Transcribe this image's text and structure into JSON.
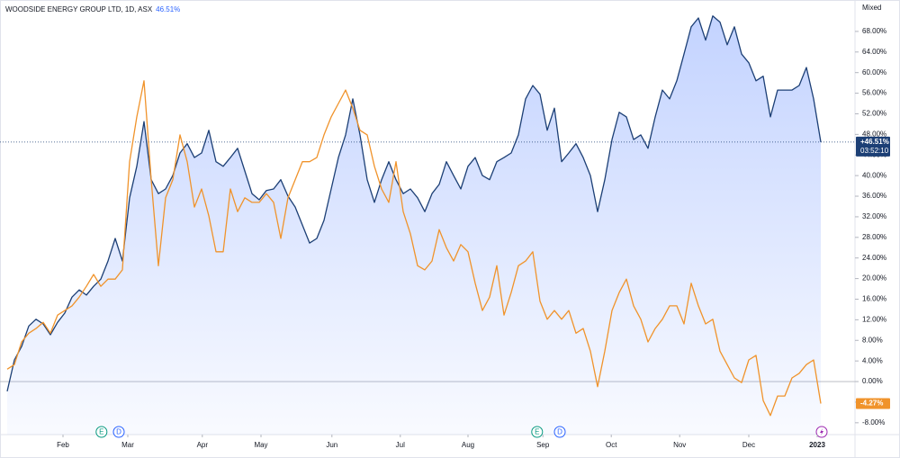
{
  "chart_data": {
    "type": "line",
    "title": "WOODSIDE ENERGY GROUP LTD, 1D, ASX",
    "title_value": "46.51%",
    "scale_mode": "Mixed",
    "countdown": "03:52:10",
    "xlim": [
      -1,
      117.75
    ],
    "ylim": [
      -10.3,
      74.1
    ],
    "xticks": [
      {
        "value": 7.75,
        "label": "Feb"
      },
      {
        "value": 16.75,
        "label": "Mar"
      },
      {
        "value": 27.1,
        "label": "Apr"
      },
      {
        "value": 35.25,
        "label": "May"
      },
      {
        "value": 45.1,
        "label": "Jun"
      },
      {
        "value": 54.6,
        "label": "Jul"
      },
      {
        "value": 64,
        "label": "Aug"
      },
      {
        "value": 74.4,
        "label": "Sep"
      },
      {
        "value": 83.9,
        "label": "Oct"
      },
      {
        "value": 93.4,
        "label": "Nov"
      },
      {
        "value": 103,
        "label": "Dec"
      },
      {
        "value": 112.5,
        "label": "2023"
      }
    ],
    "yticks": [
      {
        "value": -8,
        "label": "-8.00%"
      },
      {
        "value": -4,
        "label": "-4.00%"
      },
      {
        "value": 0,
        "label": "0.00%"
      },
      {
        "value": 4,
        "label": "4.00%"
      },
      {
        "value": 8,
        "label": "8.00%"
      },
      {
        "value": 12,
        "label": "12.00%"
      },
      {
        "value": 16,
        "label": "16.00%"
      },
      {
        "value": 20,
        "label": "20.00%"
      },
      {
        "value": 24,
        "label": "24.00%"
      },
      {
        "value": 28,
        "label": "28.00%"
      },
      {
        "value": 32,
        "label": "32.00%"
      },
      {
        "value": 36,
        "label": "36.00%"
      },
      {
        "value": 40,
        "label": "40.00%"
      },
      {
        "value": 44,
        "label": "44.00%"
      },
      {
        "value": 48,
        "label": "48.00%"
      },
      {
        "value": 52,
        "label": "52.00%"
      },
      {
        "value": 56,
        "label": "56.00%"
      },
      {
        "value": 60,
        "label": "60.00%"
      },
      {
        "value": 64,
        "label": "64.00%"
      },
      {
        "value": 68,
        "label": "68.00%"
      }
    ],
    "series": [
      {
        "color": "#1c3f75",
        "area": true,
        "value_label": "+46.51%",
        "values": [
          -1.9,
          4.2,
          6.8,
          10.8,
          12.1,
          11.2,
          9.1,
          11.5,
          13.3,
          16.4,
          17.8,
          16.8,
          18.5,
          19.9,
          23.4,
          27.8,
          23.4,
          35.7,
          41.8,
          50.5,
          39.2,
          36.5,
          37.4,
          40.0,
          44.4,
          46.2,
          43.5,
          44.4,
          48.8,
          42.7,
          41.8,
          43.5,
          45.3,
          40.9,
          36.5,
          35.3,
          37.1,
          37.4,
          39.2,
          36.0,
          33.9,
          30.4,
          26.9,
          27.8,
          31.3,
          37.4,
          43.5,
          47.9,
          54.9,
          47.9,
          39.2,
          34.8,
          39.2,
          42.7,
          39.2,
          36.5,
          37.4,
          35.7,
          33.0,
          36.5,
          38.3,
          42.7,
          40.0,
          37.4,
          41.8,
          43.5,
          40.0,
          39.2,
          42.7,
          43.5,
          44.4,
          47.9,
          54.9,
          57.5,
          55.8,
          48.8,
          53.1,
          42.7,
          44.4,
          46.2,
          43.5,
          40.0,
          33.0,
          39.2,
          47.0,
          52.3,
          51.4,
          47.0,
          47.9,
          45.3,
          51.4,
          56.6,
          54.9,
          58.4,
          63.6,
          68.9,
          70.6,
          66.3,
          71.0,
          69.8,
          65.4,
          68.9,
          63.6,
          61.9,
          58.4,
          59.3,
          51.4,
          56.6,
          56.6,
          56.6,
          57.5,
          61.0,
          54.9,
          46.51
        ]
      },
      {
        "color": "#f0932b",
        "area": false,
        "value_label": "-4.27%",
        "values": [
          2.4,
          3.3,
          7.7,
          9.4,
          10.3,
          11.5,
          9.4,
          12.9,
          13.8,
          14.7,
          16.4,
          18.5,
          20.8,
          18.5,
          19.9,
          19.9,
          21.7,
          42.7,
          51.4,
          58.4,
          39.2,
          22.5,
          35.7,
          39.2,
          47.9,
          42.7,
          33.9,
          37.4,
          32.2,
          25.2,
          25.2,
          37.4,
          33.0,
          35.7,
          34.8,
          34.8,
          36.5,
          34.8,
          27.8,
          35.7,
          39.2,
          42.7,
          42.7,
          43.5,
          47.9,
          51.4,
          54.0,
          56.6,
          53.1,
          48.8,
          47.9,
          41.8,
          37.4,
          34.8,
          42.7,
          33.0,
          28.7,
          22.5,
          21.7,
          23.4,
          29.5,
          26.0,
          23.4,
          26.6,
          25.2,
          19.1,
          13.8,
          16.4,
          22.5,
          12.9,
          17.3,
          22.5,
          23.4,
          25.2,
          15.6,
          12.1,
          13.8,
          12.1,
          13.8,
          9.4,
          10.3,
          5.9,
          -1.0,
          5.9,
          13.8,
          17.3,
          19.9,
          14.7,
          12.1,
          7.7,
          10.3,
          12.1,
          14.7,
          14.7,
          11.2,
          19.1,
          14.7,
          11.2,
          12.1,
          5.9,
          3.3,
          0.7,
          -0.2,
          4.2,
          5.1,
          -3.7,
          -6.6,
          -2.8,
          -2.8,
          0.7,
          1.6,
          3.3,
          4.2,
          -4.27
        ]
      }
    ],
    "events": [
      {
        "label": "E",
        "x": 13.1,
        "color": "#089981"
      },
      {
        "label": "D",
        "x": 15.5,
        "color": "#2962ff"
      },
      {
        "label": "E",
        "x": 73.6,
        "color": "#089981"
      },
      {
        "label": "D",
        "x": 76.75,
        "color": "#2962ff"
      }
    ]
  }
}
